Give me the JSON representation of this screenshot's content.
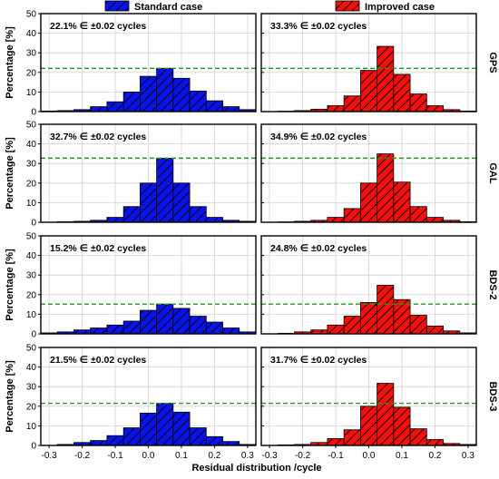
{
  "chart_data": {
    "type": "bar",
    "bins": [
      -0.3,
      -0.25,
      -0.2,
      -0.15,
      -0.1,
      -0.05,
      0.0,
      0.05,
      0.1,
      0.15,
      0.2,
      0.25,
      0.3
    ],
    "bin_width": 0.05,
    "legend": {
      "placement": "top",
      "entries": [
        {
          "label": "Standard case",
          "color": "#0a14e6"
        },
        {
          "label": "Improved case",
          "color": "#f2100c"
        }
      ]
    },
    "xlabel": "Residual distribution /cycle",
    "ylabel": "Percentage [%]",
    "ylim": [
      0,
      50
    ],
    "yticks": [
      "0",
      "10",
      "20",
      "30",
      "40",
      "50"
    ],
    "xticks": [
      "-0.3",
      "-0.2",
      "-0.1",
      "0.0",
      "0.1",
      "0.2",
      "0.3"
    ],
    "threshold_color": "#1f9a1f",
    "grid": true,
    "rows": [
      {
        "system": "GPS",
        "panels": [
          {
            "series": "Standard case",
            "annotation": "22.1% ∈ ±0.02 cycles",
            "threshold": 22.1,
            "values": [
              0.3,
              0.5,
              1.0,
              2.5,
              5.0,
              10.0,
              18.0,
              22.1,
              17.0,
              10.5,
              5.5,
              2.5,
              1.0
            ]
          },
          {
            "series": "Improved case",
            "annotation": "33.3% ∈ ±0.02 cycles",
            "threshold": 22.1,
            "values": [
              0.0,
              0.2,
              0.5,
              1.2,
              3.0,
              8.0,
              21.0,
              33.3,
              19.0,
              9.0,
              3.0,
              1.0,
              0.3
            ]
          }
        ]
      },
      {
        "system": "GAL",
        "panels": [
          {
            "series": "Standard case",
            "annotation": "32.7% ∈ ±0.02 cycles",
            "threshold": 32.7,
            "values": [
              0.0,
              0.3,
              0.5,
              1.0,
              2.5,
              8.0,
              20.0,
              32.7,
              20.0,
              8.0,
              2.5,
              1.0,
              0.5
            ]
          },
          {
            "series": "Improved case",
            "annotation": "34.9% ∈ ±0.02 cycles",
            "threshold": 32.7,
            "values": [
              0.0,
              0.2,
              0.5,
              1.0,
              2.5,
              7.0,
              20.0,
              34.9,
              20.5,
              8.0,
              2.5,
              1.0,
              0.3
            ]
          }
        ]
      },
      {
        "system": "BDS-2",
        "panels": [
          {
            "series": "Standard case",
            "annotation": "15.2% ∈ ±0.02 cycles",
            "threshold": 15.2,
            "values": [
              0.5,
              1.0,
              2.0,
              3.0,
              4.5,
              6.5,
              12.0,
              15.2,
              13.0,
              9.0,
              6.0,
              3.0,
              1.0
            ]
          },
          {
            "series": "Improved case",
            "annotation": "24.8% ∈ ±0.02 cycles",
            "threshold": 15.2,
            "values": [
              0.0,
              0.3,
              1.0,
              2.0,
              4.5,
              9.0,
              16.0,
              24.8,
              17.5,
              9.5,
              4.0,
              1.5,
              0.5
            ]
          }
        ]
      },
      {
        "system": "BDS-3",
        "panels": [
          {
            "series": "Standard case",
            "annotation": "21.5% ∈ ±0.02 cycles",
            "threshold": 21.5,
            "values": [
              0.0,
              0.5,
              1.5,
              2.5,
              5.0,
              9.0,
              16.5,
              21.5,
              17.0,
              9.0,
              4.5,
              2.0,
              0.5
            ]
          },
          {
            "series": "Improved case",
            "annotation": "31.7% ∈ ±0.02 cycles",
            "threshold": 21.5,
            "values": [
              0.0,
              0.3,
              0.5,
              1.5,
              3.5,
              8.0,
              20.0,
              31.7,
              19.5,
              8.5,
              3.0,
              1.0,
              0.5
            ]
          }
        ]
      }
    ]
  }
}
